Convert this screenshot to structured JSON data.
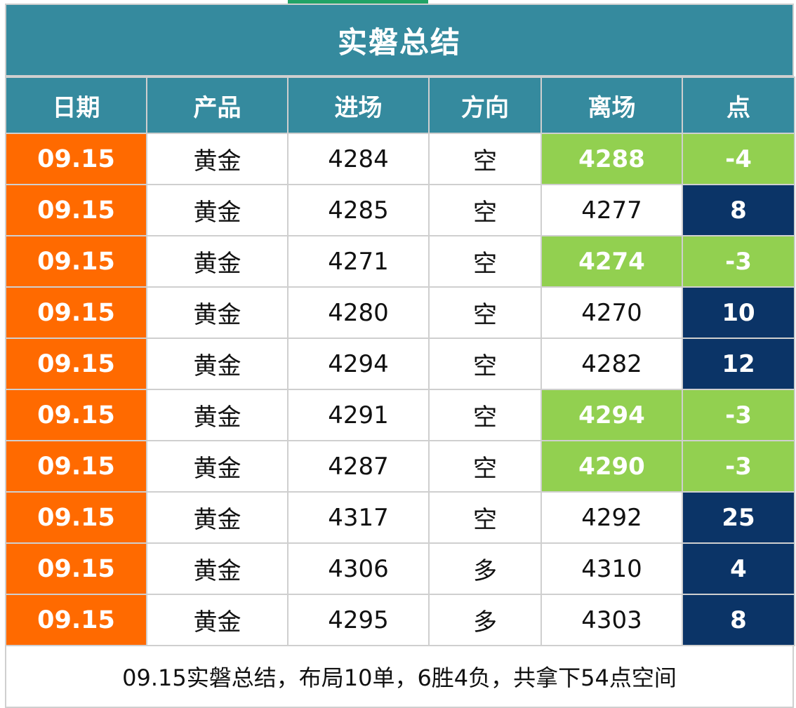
{
  "title": "实磐总结",
  "headers": [
    "日期",
    "产品",
    "进场",
    "方向",
    "离场",
    "点"
  ],
  "rows": [
    {
      "date": "09.15",
      "product": "黄金",
      "entry": "4284",
      "direction": "空",
      "exit": "4288",
      "points": "-4"
    },
    {
      "date": "09.15",
      "product": "黄金",
      "entry": "4285",
      "direction": "空",
      "exit": "4277",
      "points": "8"
    },
    {
      "date": "09.15",
      "product": "黄金",
      "entry": "4271",
      "direction": "空",
      "exit": "4274",
      "points": "-3"
    },
    {
      "date": "09.15",
      "product": "黄金",
      "entry": "4280",
      "direction": "空",
      "exit": "4270",
      "points": "10"
    },
    {
      "date": "09.15",
      "product": "黄金",
      "entry": "4294",
      "direction": "空",
      "exit": "4282",
      "points": "12"
    },
    {
      "date": "09.15",
      "product": "黄金",
      "entry": "4291",
      "direction": "空",
      "exit": "4294",
      "points": "-3"
    },
    {
      "date": "09.15",
      "product": "黄金",
      "entry": "4287",
      "direction": "空",
      "exit": "4290",
      "points": "-3"
    },
    {
      "date": "09.15",
      "product": "黄金",
      "entry": "4317",
      "direction": "空",
      "exit": "4292",
      "points": "25"
    },
    {
      "date": "09.15",
      "product": "黄金",
      "entry": "4306",
      "direction": "多",
      "exit": "4310",
      "points": "4"
    },
    {
      "date": "09.15",
      "product": "黄金",
      "entry": "4295",
      "direction": "多",
      "exit": "4303",
      "points": "8"
    }
  ],
  "summary": "09.15实磐总结，布局10单，6胜4负，共拿下54点空间",
  "colors": {
    "header": "#358a9e",
    "date": "#ff6a00",
    "loss": "#92d050",
    "win": "#0b3467"
  }
}
